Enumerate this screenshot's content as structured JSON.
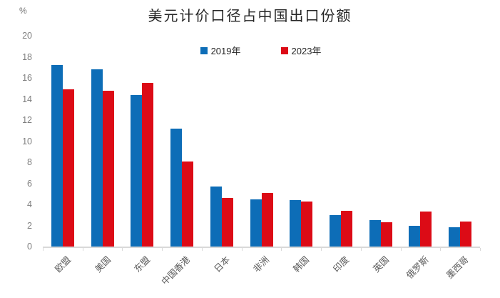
{
  "title": "美元计价口径占中国出口份额",
  "y_axis_unit": "%",
  "chart_data": {
    "type": "bar",
    "title": "美元计价口径占中国出口份额",
    "ylabel": "%",
    "xlabel": "",
    "ylim": [
      0,
      20
    ],
    "ytick_step": 2,
    "grid": false,
    "legend_position": "top-center",
    "background_color": "#ffffff",
    "axis_color": "#d9d9d9",
    "categories": [
      "欧盟",
      "美国",
      "东盟",
      "中国香港",
      "日本",
      "非洲",
      "韩国",
      "印度",
      "英国",
      "俄罗斯",
      "墨西哥"
    ],
    "series": [
      {
        "name": "2019年",
        "color": "#0d6db7",
        "values": [
          17.2,
          16.8,
          14.4,
          11.2,
          5.7,
          4.5,
          4.4,
          3.0,
          2.5,
          2.0,
          1.8
        ]
      },
      {
        "name": "2023年",
        "color": "#dc0b16",
        "values": [
          14.9,
          14.8,
          15.5,
          8.1,
          4.6,
          5.1,
          4.3,
          3.4,
          2.3,
          3.3,
          2.4
        ]
      }
    ]
  }
}
